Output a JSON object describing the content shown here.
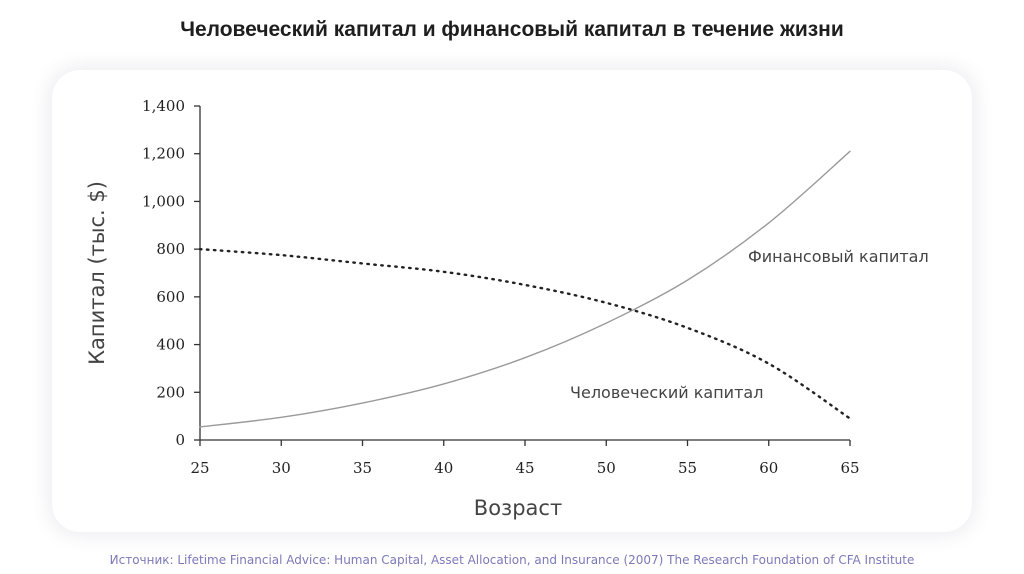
{
  "title": "Человеческий капитал и финансовый капитал в течение жизни",
  "source": "Источник: Lifetime Financial Advice: Human Capital, Asset Allocation, and Insurance (2007) The Research Foundation of CFA Institute",
  "colors": {
    "axis": "#333333",
    "financial_line": "#9a9a9a",
    "human_line": "#222222",
    "source_text": "#7b7ab8"
  },
  "chart_data": {
    "type": "line",
    "title": "Человеческий капитал и финансовый капитал в течение жизни",
    "xlabel": "Возраст",
    "ylabel": "Капитал (тыс. $)",
    "xlim": [
      25,
      65
    ],
    "ylim": [
      0,
      1400
    ],
    "x_ticks": [
      "25",
      "30",
      "35",
      "40",
      "45",
      "50",
      "55",
      "60",
      "65"
    ],
    "y_ticks": [
      "0",
      "200",
      "400",
      "600",
      "800",
      "1,000",
      "1,200",
      "1,400"
    ],
    "grid": false,
    "series": [
      {
        "name": "Финансовый капитал",
        "style": "solid",
        "x": [
          25,
          30,
          35,
          40,
          45,
          50,
          55,
          60,
          65
        ],
        "y": [
          55,
          95,
          155,
          235,
          345,
          490,
          670,
          910,
          1210
        ]
      },
      {
        "name": "Человеческий капитал",
        "style": "dotted",
        "x": [
          25,
          30,
          35,
          40,
          45,
          50,
          55,
          60,
          65
        ],
        "y": [
          800,
          775,
          740,
          705,
          650,
          575,
          470,
          320,
          90
        ]
      }
    ]
  }
}
